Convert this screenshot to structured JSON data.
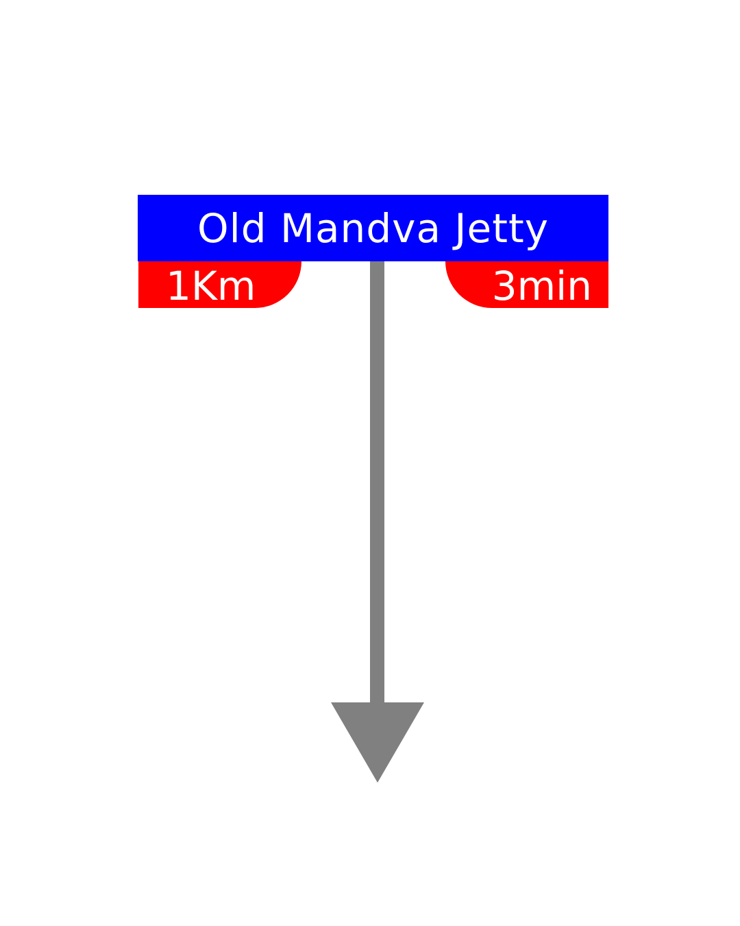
{
  "sign": {
    "destination": "Old Mandva Jetty",
    "distance": "1Km",
    "time": "3min",
    "direction_icon": "arrow-down-icon"
  },
  "colors": {
    "title_background": "#0000ff",
    "badge_background": "#ff0000",
    "text": "#ffffff",
    "arrow": "#808080",
    "page_background": "#ffffff"
  }
}
